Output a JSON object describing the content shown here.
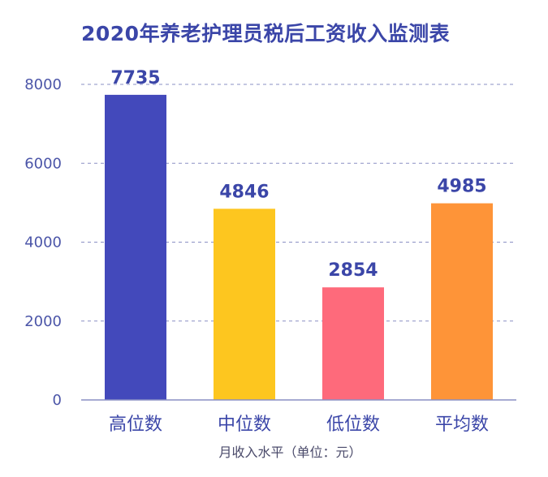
{
  "chart_data": {
    "type": "bar",
    "title": "2020年养老护理员税后工资收入监测表",
    "xlabel": "月收入水平（单位：元）",
    "ylabel": "",
    "categories": [
      "高位数",
      "中位数",
      "低位数",
      "平均数"
    ],
    "values": [
      7735,
      4846,
      2854,
      4985
    ],
    "bar_colors": [
      "#4349bb",
      "#fdc61f",
      "#fe6a7b",
      "#fe9438"
    ],
    "ylim": [
      0,
      8000
    ],
    "yticks": [
      0,
      2000,
      4000,
      6000,
      8000
    ],
    "grid": true,
    "legend": "none"
  }
}
